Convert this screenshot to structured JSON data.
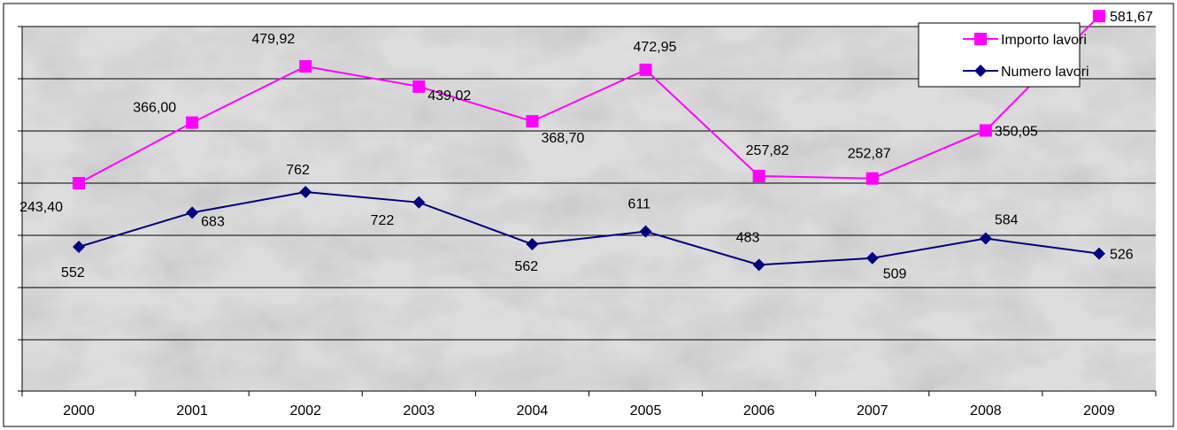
{
  "chart_data": {
    "type": "line",
    "categories": [
      "2000",
      "2001",
      "2002",
      "2003",
      "2004",
      "2005",
      "2006",
      "2007",
      "2008",
      "2009"
    ],
    "series": [
      {
        "name": "Importo lavori",
        "color": "#ff00ff",
        "marker": "square",
        "values": [
          243.4,
          366.0,
          479.92,
          439.02,
          368.7,
          472.95,
          257.82,
          252.87,
          350.05,
          581.67
        ],
        "labels": [
          "243,40",
          "366,00",
          "479,92",
          "439,02",
          "368,70",
          "472,95",
          "257,82",
          "252,87",
          "350,05",
          "581,67"
        ]
      },
      {
        "name": "Numero lavori",
        "color": "#000080",
        "marker": "diamond",
        "values": [
          552,
          683,
          762,
          722,
          562,
          611,
          483,
          509,
          584,
          526
        ],
        "labels": [
          "552",
          "683",
          "762",
          "722",
          "562",
          "611",
          "483",
          "509",
          "584",
          "526"
        ]
      }
    ],
    "title": "",
    "xlabel": "",
    "ylabel": "",
    "y_tick_labels_shown": false,
    "grid": "horizontal",
    "legend_position": "top-right",
    "plot_background": "marble texture"
  }
}
